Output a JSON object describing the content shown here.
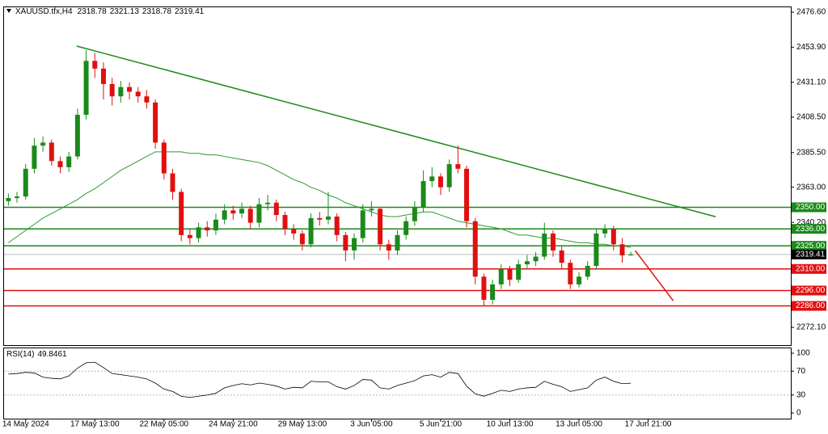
{
  "chart_data": {
    "type": "candlestick",
    "symbol": "XAUUSD.tfx,H4",
    "xlim": [
      -0.5,
      90.5
    ],
    "xticks": [
      {
        "value": 2,
        "label": "14 May 2024"
      },
      {
        "value": 10,
        "label": "17 May 13:00"
      },
      {
        "value": 18,
        "label": "22 May 05:00"
      },
      {
        "value": 26,
        "label": "24 May 21:00"
      },
      {
        "value": 34,
        "label": "29 May 13:00"
      },
      {
        "value": 42,
        "label": "3 Jun 05:00"
      },
      {
        "value": 50,
        "label": "5 Jun 21:00"
      },
      {
        "value": 58,
        "label": "10 Jun 13:00"
      },
      {
        "value": 66,
        "label": "13 Jun 05:00"
      },
      {
        "value": 74,
        "label": "17 Jun 21:00"
      }
    ],
    "ylim": [
      2260.6,
      2480.3
    ],
    "yticks": [
      {
        "value": 2476.6,
        "label": "2476.60"
      },
      {
        "value": 2453.9,
        "label": "2453.90"
      },
      {
        "value": 2431.1,
        "label": "2431.10"
      },
      {
        "value": 2408.5,
        "label": "2408.50"
      },
      {
        "value": 2385.5,
        "label": "2385.50"
      },
      {
        "value": 2363,
        "label": "2363.00"
      },
      {
        "value": 2340.2,
        "label": "2340.20"
      },
      {
        "value": 2272.1,
        "label": "2272.10"
      }
    ],
    "up_color": "#1a8a1a",
    "down_color": "#e01010",
    "open": [
      2354,
      2356,
      2357,
      2375,
      2390,
      2392,
      2380,
      2376,
      2383,
      2410,
      2445,
      2440,
      2430,
      2422,
      2428,
      2425,
      2422,
      2418,
      2392,
      2372,
      2360,
      2332,
      2330,
      2337,
      2335,
      2342,
      2348,
      2346,
      2349,
      2340,
      2352,
      2353,
      2345,
      2336,
      2333,
      2326,
      2343,
      2342,
      2344,
      2332,
      2322,
      2330,
      2348,
      2349,
      2326,
      2322,
      2332,
      2341,
      2350,
      2367,
      2370,
      2363,
      2378,
      2375,
      2341,
      2305,
      2290,
      2300,
      2310,
      2303,
      2313,
      2315,
      2318,
      2333,
      2322,
      2314,
      2300,
      2305,
      2312,
      2333,
      2336,
      2326,
      2318.78
    ],
    "high": [
      2359,
      2360,
      2378,
      2395,
      2396,
      2394,
      2383,
      2386,
      2414,
      2452,
      2450,
      2444,
      2434,
      2432,
      2431,
      2428,
      2426,
      2420,
      2394,
      2375,
      2362,
      2336,
      2340,
      2341,
      2346,
      2352,
      2351,
      2353,
      2351,
      2356,
      2358,
      2355,
      2347,
      2339,
      2335,
      2346,
      2347,
      2360,
      2346,
      2334,
      2333,
      2352,
      2354,
      2350,
      2329,
      2335,
      2344,
      2354,
      2374,
      2376,
      2372,
      2381,
      2390,
      2377,
      2343,
      2307,
      2303,
      2313,
      2312,
      2316,
      2319,
      2321,
      2340,
      2335,
      2325,
      2316,
      2308,
      2315,
      2336,
      2339,
      2338,
      2330,
      2321.13
    ],
    "low": [
      2351,
      2353,
      2355,
      2372,
      2386,
      2377,
      2372,
      2373,
      2381,
      2407,
      2434,
      2420,
      2416,
      2418,
      2420,
      2418,
      2414,
      2388,
      2368,
      2355,
      2328,
      2326,
      2327,
      2331,
      2332,
      2339,
      2342,
      2343,
      2336,
      2337,
      2348,
      2341,
      2332,
      2329,
      2322,
      2324,
      2338,
      2339,
      2328,
      2315,
      2316,
      2327,
      2344,
      2322,
      2316,
      2319,
      2329,
      2338,
      2347,
      2363,
      2358,
      2360,
      2372,
      2337,
      2300,
      2286,
      2287,
      2297,
      2299,
      2301,
      2310,
      2312,
      2316,
      2318,
      2310,
      2297,
      2298,
      2303,
      2310,
      2330,
      2322,
      2314,
      2318.78
    ],
    "close": [
      2356,
      2357,
      2375,
      2390,
      2392,
      2380,
      2376,
      2383,
      2410,
      2445,
      2440,
      2430,
      2422,
      2428,
      2425,
      2422,
      2418,
      2392,
      2372,
      2360,
      2332,
      2330,
      2337,
      2335,
      2342,
      2348,
      2346,
      2349,
      2340,
      2352,
      2353,
      2345,
      2336,
      2333,
      2326,
      2343,
      2342,
      2344,
      2332,
      2322,
      2330,
      2348,
      2349,
      2326,
      2322,
      2332,
      2341,
      2350,
      2367,
      2370,
      2363,
      2378,
      2375,
      2341,
      2305,
      2290,
      2300,
      2310,
      2303,
      2313,
      2315,
      2318,
      2333,
      2322,
      2314,
      2300,
      2305,
      2312,
      2333,
      2336,
      2326,
      2318.78,
      2319.41
    ],
    "ma": {
      "color": "#2e9b2e",
      "values": [
        2327,
        2331,
        2335,
        2339,
        2343,
        2346,
        2349,
        2352,
        2355,
        2359,
        2362,
        2366,
        2370,
        2374,
        2377,
        2380,
        2383,
        2386,
        2386,
        2386,
        2386,
        2385,
        2385,
        2384,
        2384,
        2383,
        2382,
        2381,
        2380,
        2379,
        2377,
        2374,
        2371,
        2368,
        2366,
        2363,
        2361,
        2358,
        2356,
        2353,
        2351,
        2349,
        2347,
        2345,
        2344,
        2344,
        2345,
        2346,
        2347,
        2347,
        2345,
        2343,
        2341,
        2340,
        2339,
        2338,
        2337,
        2336,
        2334,
        2332,
        2332,
        2331,
        2330,
        2330,
        2329,
        2328,
        2327,
        2327,
        2326,
        2326,
        2325,
        2325,
        2324
      ]
    },
    "trendlines": [
      {
        "x": [
          7.9,
          81.8
        ],
        "y": [
          2454.6,
          2343.9
        ],
        "color": "#1a8a1a"
      },
      {
        "x": [
          72.5,
          76.9
        ],
        "y": [
          2321.9,
          2289.4
        ],
        "color": "#e01010"
      }
    ],
    "levels": [
      {
        "value": 2350,
        "label": "2350.00",
        "color": "#1a8a1a"
      },
      {
        "value": 2336,
        "label": "2336.00",
        "color": "#1a8a1a"
      },
      {
        "value": 2325,
        "label": "2325.00",
        "color": "#1a8a1a"
      },
      {
        "value": 2310,
        "label": "2310.00",
        "color": "#e01010"
      },
      {
        "value": 2296,
        "label": "2296.00",
        "color": "#e01010"
      },
      {
        "value": 2286,
        "label": "2286.00",
        "color": "#e01010"
      }
    ],
    "rsi": {
      "title": "RSI(14)",
      "ylim": [
        -9.5,
        109.5
      ],
      "yticks": [
        100,
        70,
        30,
        0
      ],
      "levels": [
        70,
        30
      ],
      "values": [
        65,
        66,
        68,
        67,
        60,
        58,
        57,
        62,
        75,
        84,
        85,
        76,
        66,
        64,
        62,
        60,
        57,
        50,
        40,
        36,
        28,
        26,
        28,
        30,
        33,
        42,
        46,
        49,
        47,
        50,
        48,
        45,
        40,
        43,
        42,
        53,
        52,
        52,
        44,
        40,
        46,
        56,
        55,
        42,
        40,
        46,
        50,
        54,
        62,
        64,
        60,
        68,
        66,
        45,
        32,
        28,
        33,
        38,
        36,
        40,
        42,
        43,
        53,
        48,
        44,
        36,
        39,
        42,
        55,
        60,
        53,
        49,
        49.8461
      ]
    }
  }
}
